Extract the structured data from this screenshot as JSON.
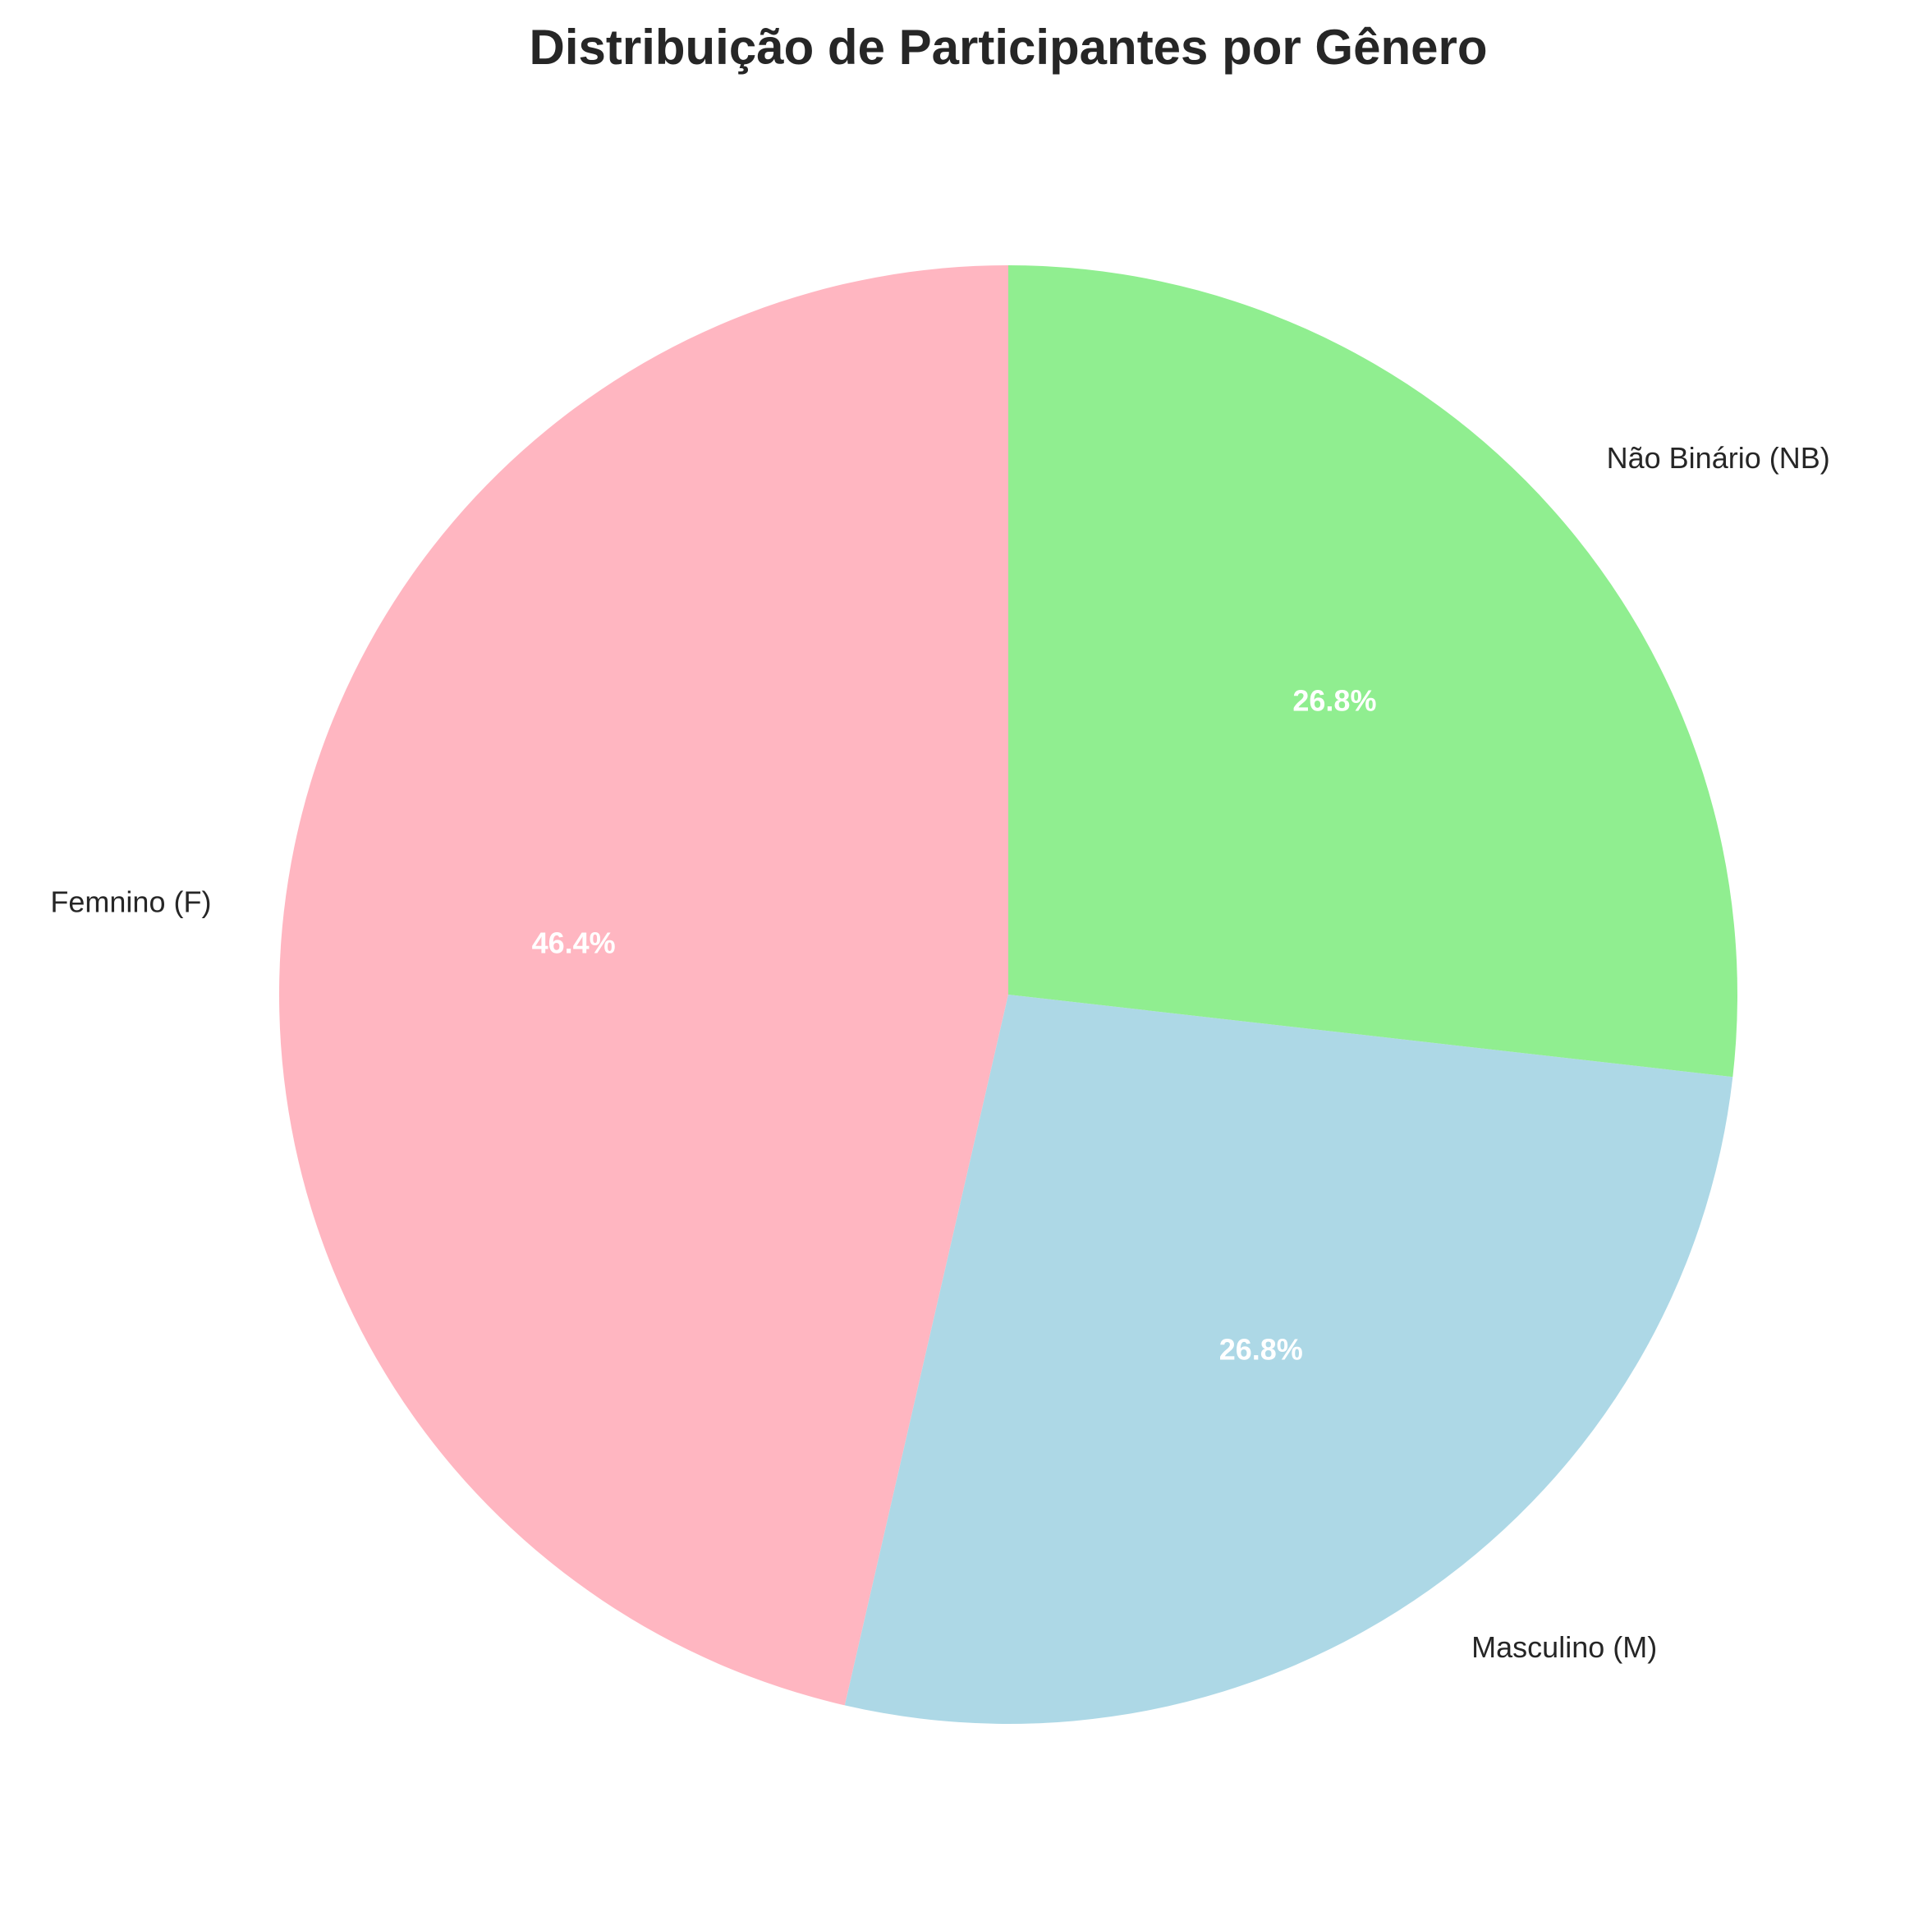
{
  "chart_data": {
    "type": "pie",
    "title": "Distribuição de Participantes por Gênero",
    "categories": [
      "Femnino (F)",
      "Masculino (M)",
      "Não Binário (NB)"
    ],
    "values": [
      46.4,
      26.8,
      26.8
    ],
    "percent_labels": [
      "46.4%",
      "26.8%",
      "26.8%"
    ],
    "colors": [
      "#FFB6C1",
      "#ADD8E6",
      "#90EE90"
    ],
    "start_angle_deg": 90,
    "direction": "counterclockwise"
  }
}
